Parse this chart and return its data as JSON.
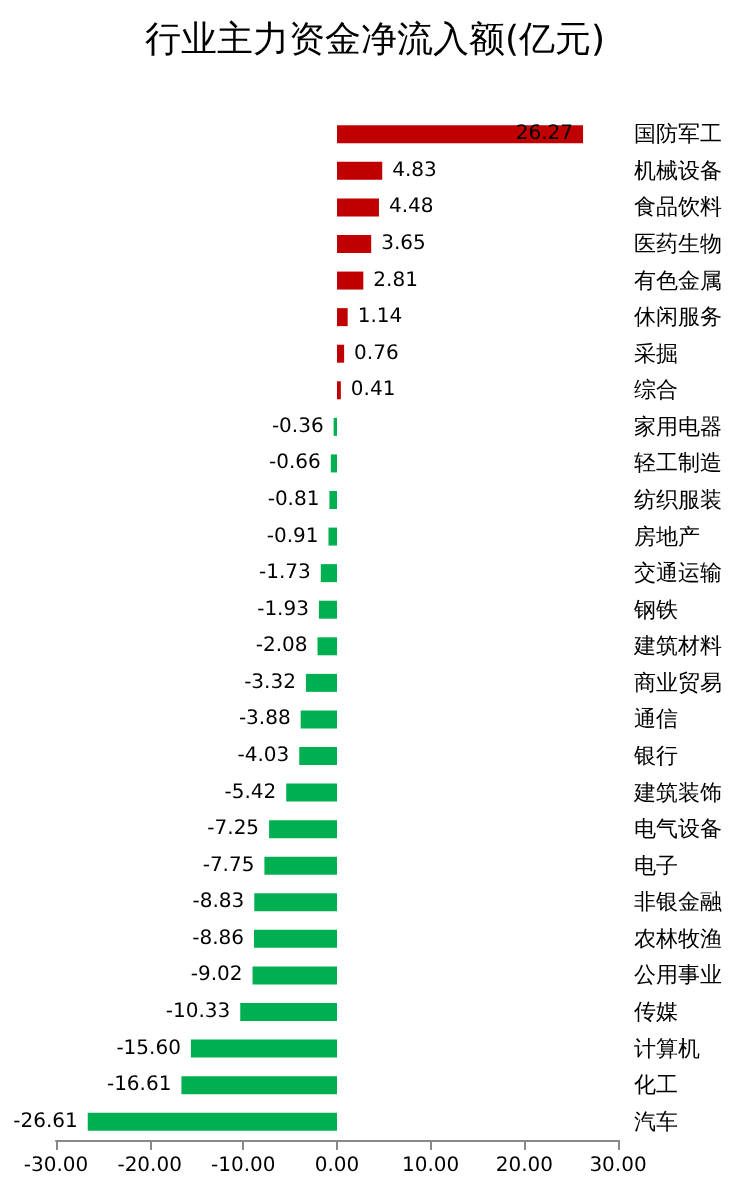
{
  "chart_data": {
    "type": "bar",
    "orientation": "horizontal",
    "title": "行业主力资金净流入额(亿元)",
    "categories": [
      "国防军工",
      "机械设备",
      "食品饮料",
      "医药生物",
      "有色金属",
      "休闲服务",
      "采掘",
      "综合",
      "家用电器",
      "轻工制造",
      "纺织服装",
      "房地产",
      "交通运输",
      "钢铁",
      "建筑材料",
      "商业贸易",
      "通信",
      "银行",
      "建筑装饰",
      "电气设备",
      "电子",
      "非银金融",
      "农林牧渔",
      "公用事业",
      "传媒",
      "计算机",
      "化工",
      "汽车"
    ],
    "values": [
      26.27,
      4.83,
      4.48,
      3.65,
      2.81,
      1.14,
      0.76,
      0.41,
      -0.36,
      -0.66,
      -0.81,
      -0.91,
      -1.73,
      -1.93,
      -2.08,
      -3.32,
      -3.88,
      -4.03,
      -5.42,
      -7.25,
      -7.75,
      -8.83,
      -8.86,
      -9.02,
      -10.33,
      -15.6,
      -16.61,
      -26.61
    ],
    "value_labels": [
      "26.27",
      "4.83",
      "4.48",
      "3.65",
      "2.81",
      "1.14",
      "0.76",
      "0.41",
      "-0.36",
      "-0.66",
      "-0.81",
      "-0.91",
      "-1.73",
      "-1.93",
      "-2.08",
      "-3.32",
      "-3.88",
      "-4.03",
      "-5.42",
      "-7.25",
      "-7.75",
      "-8.83",
      "-8.86",
      "-9.02",
      "-10.33",
      "-15.60",
      "-16.61",
      "-26.61"
    ],
    "colors": [
      "#c00000",
      "#c00000",
      "#c00000",
      "#c00000",
      "#c00000",
      "#c00000",
      "#c00000",
      "#c00000",
      "#00b050",
      "#00b050",
      "#00b050",
      "#00b050",
      "#00b050",
      "#00b050",
      "#00b050",
      "#00b050",
      "#00b050",
      "#00b050",
      "#00b050",
      "#00b050",
      "#00b050",
      "#00b050",
      "#00b050",
      "#00b050",
      "#00b050",
      "#00b050",
      "#00b050",
      "#00b050"
    ],
    "xlim": [
      -30,
      30
    ],
    "xticks": [
      {
        "value": -30,
        "label": "-30.00"
      },
      {
        "value": -20,
        "label": "-20.00"
      },
      {
        "value": -10,
        "label": "-10.00"
      },
      {
        "value": 0,
        "label": "0.00"
      },
      {
        "value": 10,
        "label": "10.00"
      },
      {
        "value": 20,
        "label": "20.00"
      },
      {
        "value": 30,
        "label": "30.00"
      }
    ]
  }
}
